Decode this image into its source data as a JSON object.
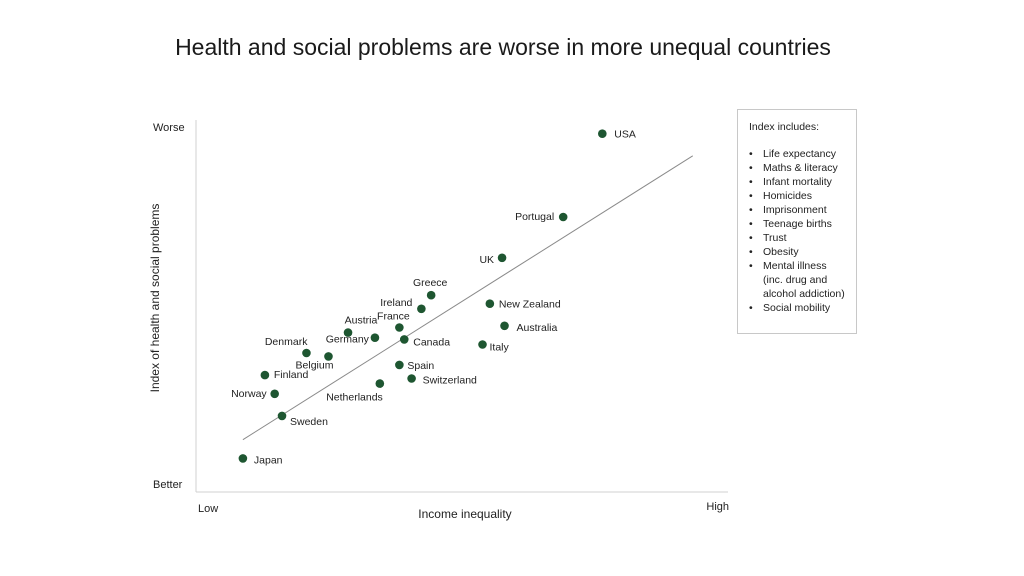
{
  "chart_data": {
    "type": "scatter",
    "title": "Health and social problems are worse in more unequal countries",
    "xlabel": "Income inequality",
    "ylabel": "Index of health and social problems",
    "x_min_label": "Low",
    "x_max_label": "High",
    "y_min_label": "Better",
    "y_max_label": "Worse",
    "xlim": [
      0,
      10
    ],
    "ylim": [
      0,
      10
    ],
    "grid": false,
    "legend_placement": "right",
    "marker_color": "#1e5631",
    "trendline": {
      "x": [
        0.55,
        9.75
      ],
      "y": [
        0.95,
        9.3
      ]
    },
    "points": [
      {
        "label": "USA",
        "x": 7.9,
        "y": 9.95
      },
      {
        "label": "Portugal",
        "x": 7.1,
        "y": 7.5
      },
      {
        "label": "UK",
        "x": 5.85,
        "y": 6.3
      },
      {
        "label": "Greece",
        "x": 4.4,
        "y": 5.2
      },
      {
        "label": "Ireland",
        "x": 4.2,
        "y": 4.8
      },
      {
        "label": "New Zealand",
        "x": 5.6,
        "y": 4.95
      },
      {
        "label": "Australia",
        "x": 5.9,
        "y": 4.3
      },
      {
        "label": "France",
        "x": 3.75,
        "y": 4.25
      },
      {
        "label": "Austria",
        "x": 2.7,
        "y": 4.1
      },
      {
        "label": "Germany",
        "x": 3.25,
        "y": 3.95
      },
      {
        "label": "Canada",
        "x": 3.85,
        "y": 3.9
      },
      {
        "label": "Italy",
        "x": 5.45,
        "y": 3.75
      },
      {
        "label": "Denmark",
        "x": 1.85,
        "y": 3.5
      },
      {
        "label": "Belgium",
        "x": 2.3,
        "y": 3.4
      },
      {
        "label": "Spain",
        "x": 3.75,
        "y": 3.15
      },
      {
        "label": "Finland",
        "x": 1.0,
        "y": 2.85
      },
      {
        "label": "Switzerland",
        "x": 4.0,
        "y": 2.75
      },
      {
        "label": "Netherlands",
        "x": 3.35,
        "y": 2.6
      },
      {
        "label": "Norway",
        "x": 1.2,
        "y": 2.3
      },
      {
        "label": "Sweden",
        "x": 1.35,
        "y": 1.65
      },
      {
        "label": "Japan",
        "x": 0.55,
        "y": 0.4
      }
    ]
  },
  "legend": {
    "title": "Index includes:",
    "items": [
      "Life expectancy",
      "Maths & literacy",
      "Infant mortality",
      "Homicides",
      "Imprisonment",
      "Teenage births",
      "Trust",
      "Obesity",
      "Mental illness",
      "(inc. drug and",
      "alcohol addiction)",
      "Social mobility"
    ]
  }
}
